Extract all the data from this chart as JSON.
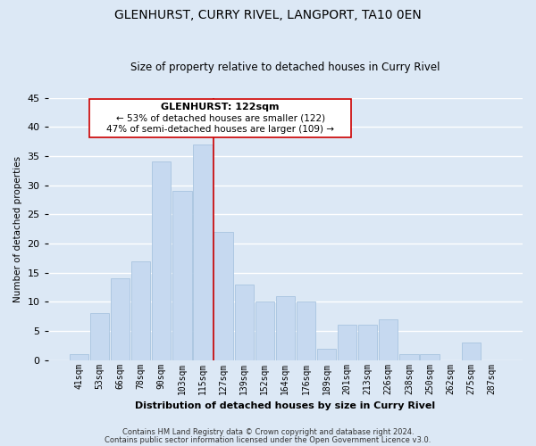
{
  "title": "GLENHURST, CURRY RIVEL, LANGPORT, TA10 0EN",
  "subtitle": "Size of property relative to detached houses in Curry Rivel",
  "xlabel": "Distribution of detached houses by size in Curry Rivel",
  "ylabel": "Number of detached properties",
  "bar_labels": [
    "41sqm",
    "53sqm",
    "66sqm",
    "78sqm",
    "90sqm",
    "103sqm",
    "115sqm",
    "127sqm",
    "139sqm",
    "152sqm",
    "164sqm",
    "176sqm",
    "189sqm",
    "201sqm",
    "213sqm",
    "226sqm",
    "238sqm",
    "250sqm",
    "262sqm",
    "275sqm",
    "287sqm"
  ],
  "bar_values": [
    1,
    8,
    14,
    17,
    34,
    29,
    37,
    22,
    13,
    10,
    11,
    10,
    2,
    6,
    6,
    7,
    1,
    1,
    0,
    3,
    0
  ],
  "bar_color": "#c6d9f0",
  "bar_edge_color": "#a8c4e0",
  "vline_x_idx": 6.5,
  "vline_color": "#cc0000",
  "annotation_title": "GLENHURST: 122sqm",
  "annotation_line1": "← 53% of detached houses are smaller (122)",
  "annotation_line2": "47% of semi-detached houses are larger (109) →",
  "annotation_box_color": "white",
  "annotation_box_edge": "#cc0000",
  "ylim_max": 45,
  "footnote1": "Contains HM Land Registry data © Crown copyright and database right 2024.",
  "footnote2": "Contains public sector information licensed under the Open Government Licence v3.0.",
  "background_color": "#dce8f5",
  "grid_color": "white"
}
